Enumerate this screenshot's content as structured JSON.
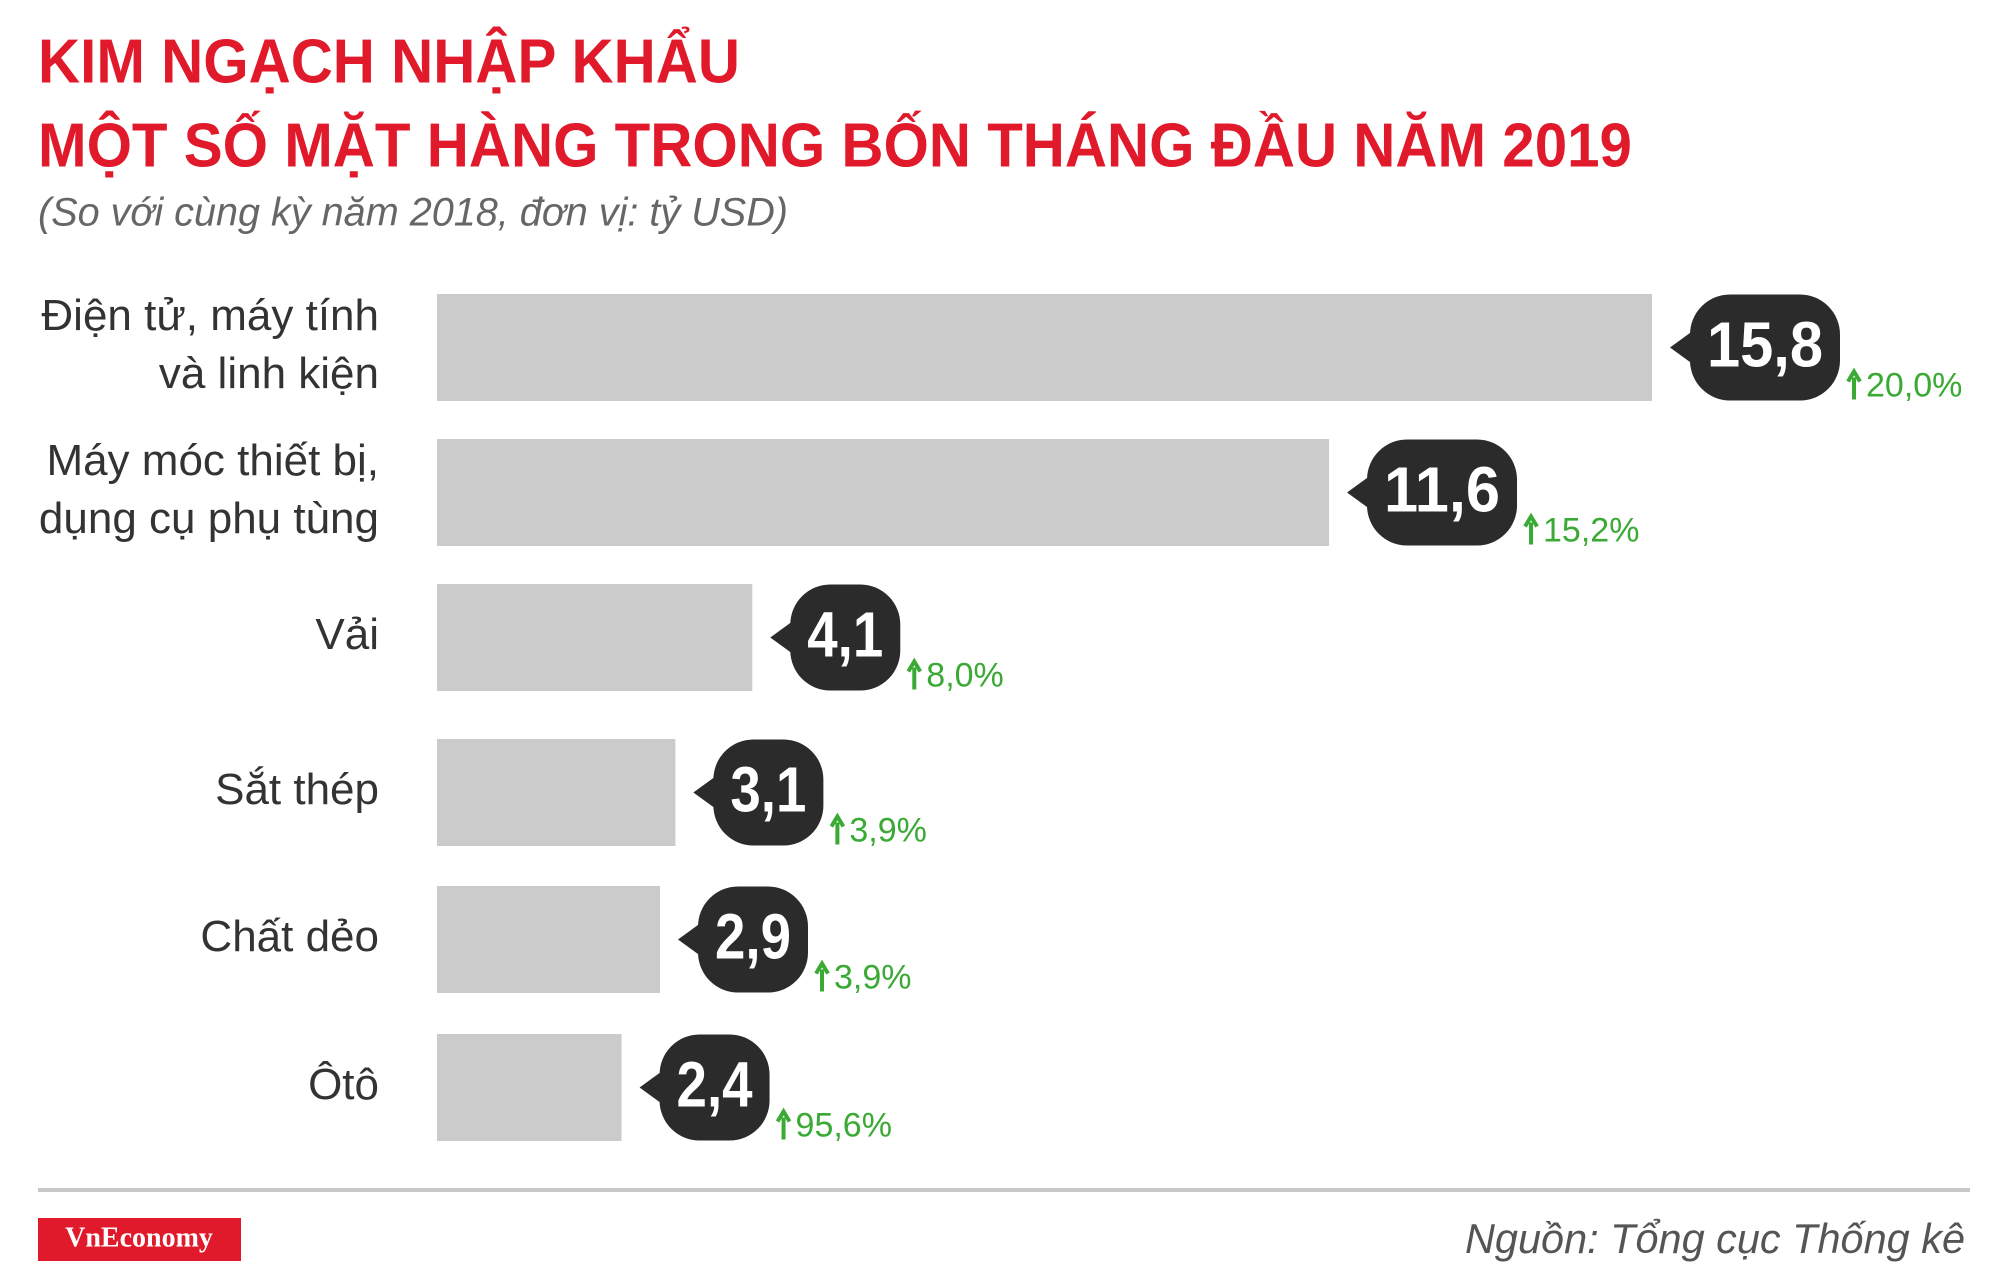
{
  "chart_data": {
    "type": "bar",
    "orientation": "horizontal",
    "title": [
      "KIM NGẠCH NHẬP KHẨU",
      "MỘT SỐ MẶT HÀNG TRONG BỐN THÁNG ĐẦU NĂM 2019"
    ],
    "subtitle": "(So với cùng kỳ năm 2018, đơn vị: tỷ USD)",
    "categories": [
      [
        "Điện tử, máy tính",
        "và linh kiện"
      ],
      [
        "Máy móc thiết bị,",
        "dụng cụ phụ tùng"
      ],
      [
        "Vải"
      ],
      [
        "Sắt thép"
      ],
      [
        "Chất dẻo"
      ],
      [
        "Ôtô"
      ]
    ],
    "values": [
      15.8,
      11.6,
      4.1,
      3.1,
      2.9,
      2.4
    ],
    "value_labels": [
      "15,8",
      "11,6",
      "4,1",
      "3,1",
      "2,9",
      "2,4"
    ],
    "change_labels": [
      "20,0%",
      "15,2%",
      "8,0%",
      "3,9%",
      "3,9%",
      "95,6%"
    ],
    "color": "#cccbcb",
    "source": "Nguồn: Tổng cục Thống kê",
    "logo": "VnEconomy"
  }
}
